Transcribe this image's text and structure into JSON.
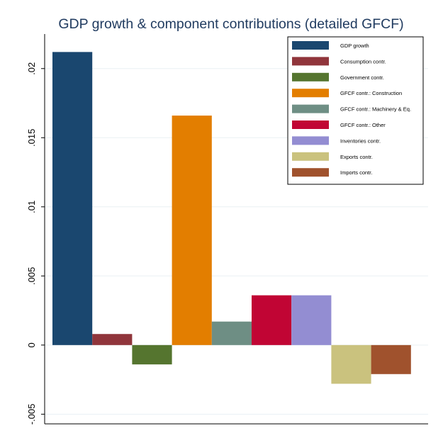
{
  "chart_data": {
    "type": "bar",
    "title": "GDP growth & component contributions (detailed GFCF)",
    "xlabel": "",
    "ylabel": "",
    "ylim": [
      -0.0057,
      0.0225
    ],
    "y_ticks": [
      {
        "value": -0.005,
        "label": "-.005"
      },
      {
        "value": 0,
        "label": "0"
      },
      {
        "value": 0.005,
        "label": ".005"
      },
      {
        "value": 0.01,
        "label": ".01"
      },
      {
        "value": 0.015,
        "label": ".015"
      },
      {
        "value": 0.02,
        "label": ".02"
      }
    ],
    "grid": true,
    "legend_position": "top-right",
    "series": [
      {
        "name": "GDP growth",
        "value": 0.0212,
        "color": "#1a476f"
      },
      {
        "name": "Consumption contr.",
        "value": 0.0008,
        "color": "#90353b"
      },
      {
        "name": "Government contr.",
        "value": -0.0014,
        "color": "#55752f"
      },
      {
        "name": "GFCF contr.: Construction",
        "value": 0.0166,
        "color": "#e37e00"
      },
      {
        "name": "GFCF contr.: Machinery & Eq.",
        "value": 0.0017,
        "color": "#6e8e84"
      },
      {
        "name": "GFCF contr.: Other",
        "value": 0.0036,
        "color": "#c10534"
      },
      {
        "name": "Inventories contr.",
        "value": 0.0036,
        "color": "#938dd2"
      },
      {
        "name": "Exports contr.",
        "value": -0.0028,
        "color": "#cac27e"
      },
      {
        "name": "Imports contr.",
        "value": -0.0021,
        "color": "#a0522d"
      }
    ]
  }
}
